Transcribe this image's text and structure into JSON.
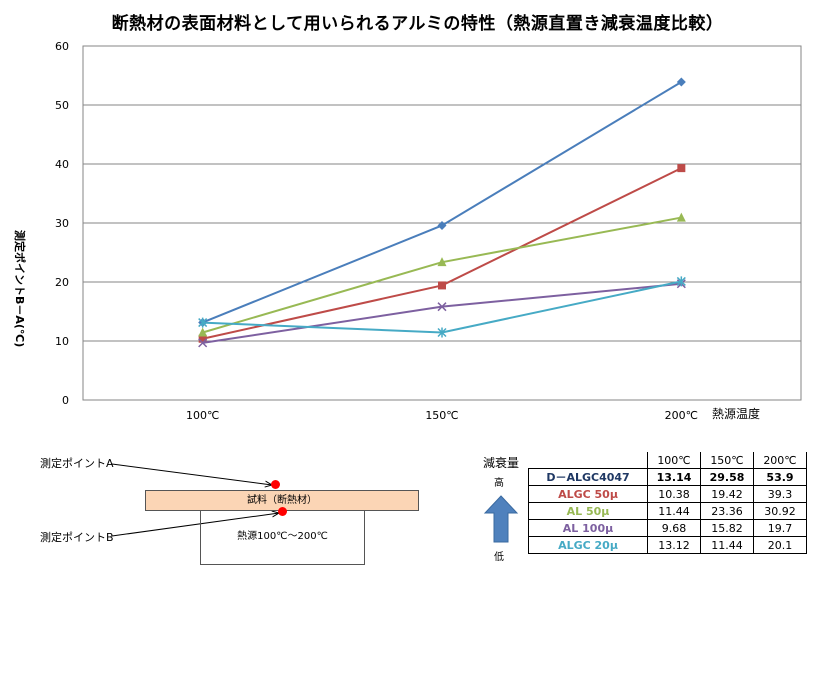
{
  "chart_data": {
    "type": "line",
    "title": "断熱材の表面材料として用いられるアルミの特性（熱源直置き減衰温度比較）",
    "ylabel": "測定ポイントB－A(℃)",
    "xlabel": "熱源温度",
    "categories": [
      "100℃",
      "150℃",
      "200℃"
    ],
    "ylim": [
      0,
      60
    ],
    "yticks": [
      0,
      10,
      20,
      30,
      40,
      50,
      60
    ],
    "grid": true,
    "legend": "none",
    "series": [
      {
        "name": "D－ALGC4047",
        "values": [
          13.14,
          29.58,
          53.9
        ],
        "color": "#4a7ebb",
        "marker": "diamond"
      },
      {
        "name": "ALGC 50μ",
        "values": [
          10.38,
          19.42,
          39.3
        ],
        "color": "#be4b48",
        "marker": "square"
      },
      {
        "name": "AL 50μ",
        "values": [
          11.44,
          23.36,
          30.92
        ],
        "color": "#98b954",
        "marker": "triangle"
      },
      {
        "name": "AL 100μ",
        "values": [
          9.68,
          15.82,
          19.7
        ],
        "color": "#7d60a0",
        "marker": "x"
      },
      {
        "name": "ALGC 20μ",
        "values": [
          13.12,
          11.44,
          20.1
        ],
        "color": "#46aac5",
        "marker": "star"
      }
    ]
  },
  "diagram": {
    "point_a_label": "測定ポイントA",
    "point_b_label": "測定ポイントB",
    "sample_label": "試料（断熱材）",
    "heat_label": "熱源100℃～200℃"
  },
  "decay": {
    "title": "減衰量",
    "high": "高",
    "low": "低",
    "arrow_color": "#4f81bd"
  },
  "table": {
    "headers": [
      "100℃",
      "150℃",
      "200℃"
    ],
    "bold_first_row": true
  }
}
